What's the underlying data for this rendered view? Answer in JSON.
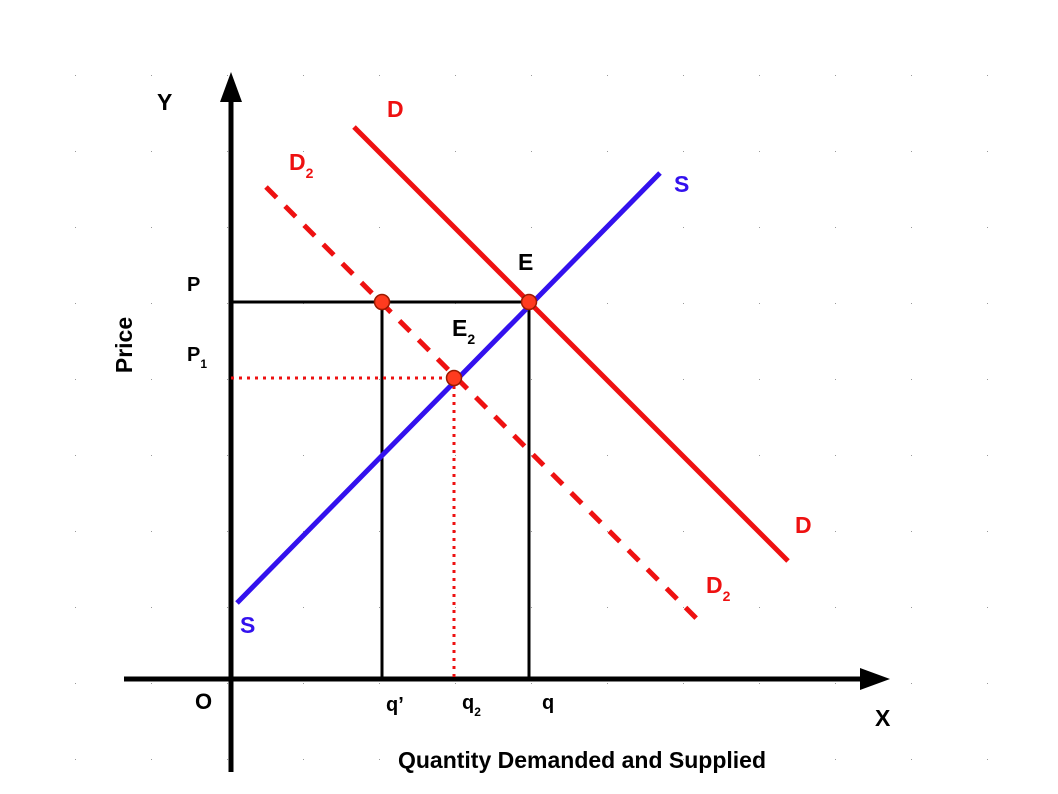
{
  "colors": {
    "axis": "#000000",
    "demand": "#ee1111",
    "supply": "#3311ee",
    "point_fill": "#ff3b1f",
    "grid_dot": "#9a9a9a"
  },
  "axes": {
    "y_label": "Y",
    "x_label": "X",
    "origin_label": "O",
    "y_title": "Price",
    "x_title": "Quantity Demanded and Supplied"
  },
  "curves": {
    "demand": {
      "top_label": "D",
      "bottom_label": "D"
    },
    "demand_shifted": {
      "top_label": "D",
      "top_sub": "2",
      "bottom_label": "D",
      "bottom_sub": "2"
    },
    "supply": {
      "top_label": "S",
      "bottom_label": "S"
    }
  },
  "equilibria": {
    "original": {
      "label": "E",
      "sub": ""
    },
    "new": {
      "label": "E",
      "sub": "2"
    }
  },
  "price_labels": {
    "p": {
      "label": "P",
      "sub": ""
    },
    "p1": {
      "label": "P",
      "sub": "1"
    }
  },
  "quantity_labels": {
    "q_prime": "q’",
    "q2": {
      "label": "q",
      "sub": "2"
    },
    "q": "q"
  }
}
